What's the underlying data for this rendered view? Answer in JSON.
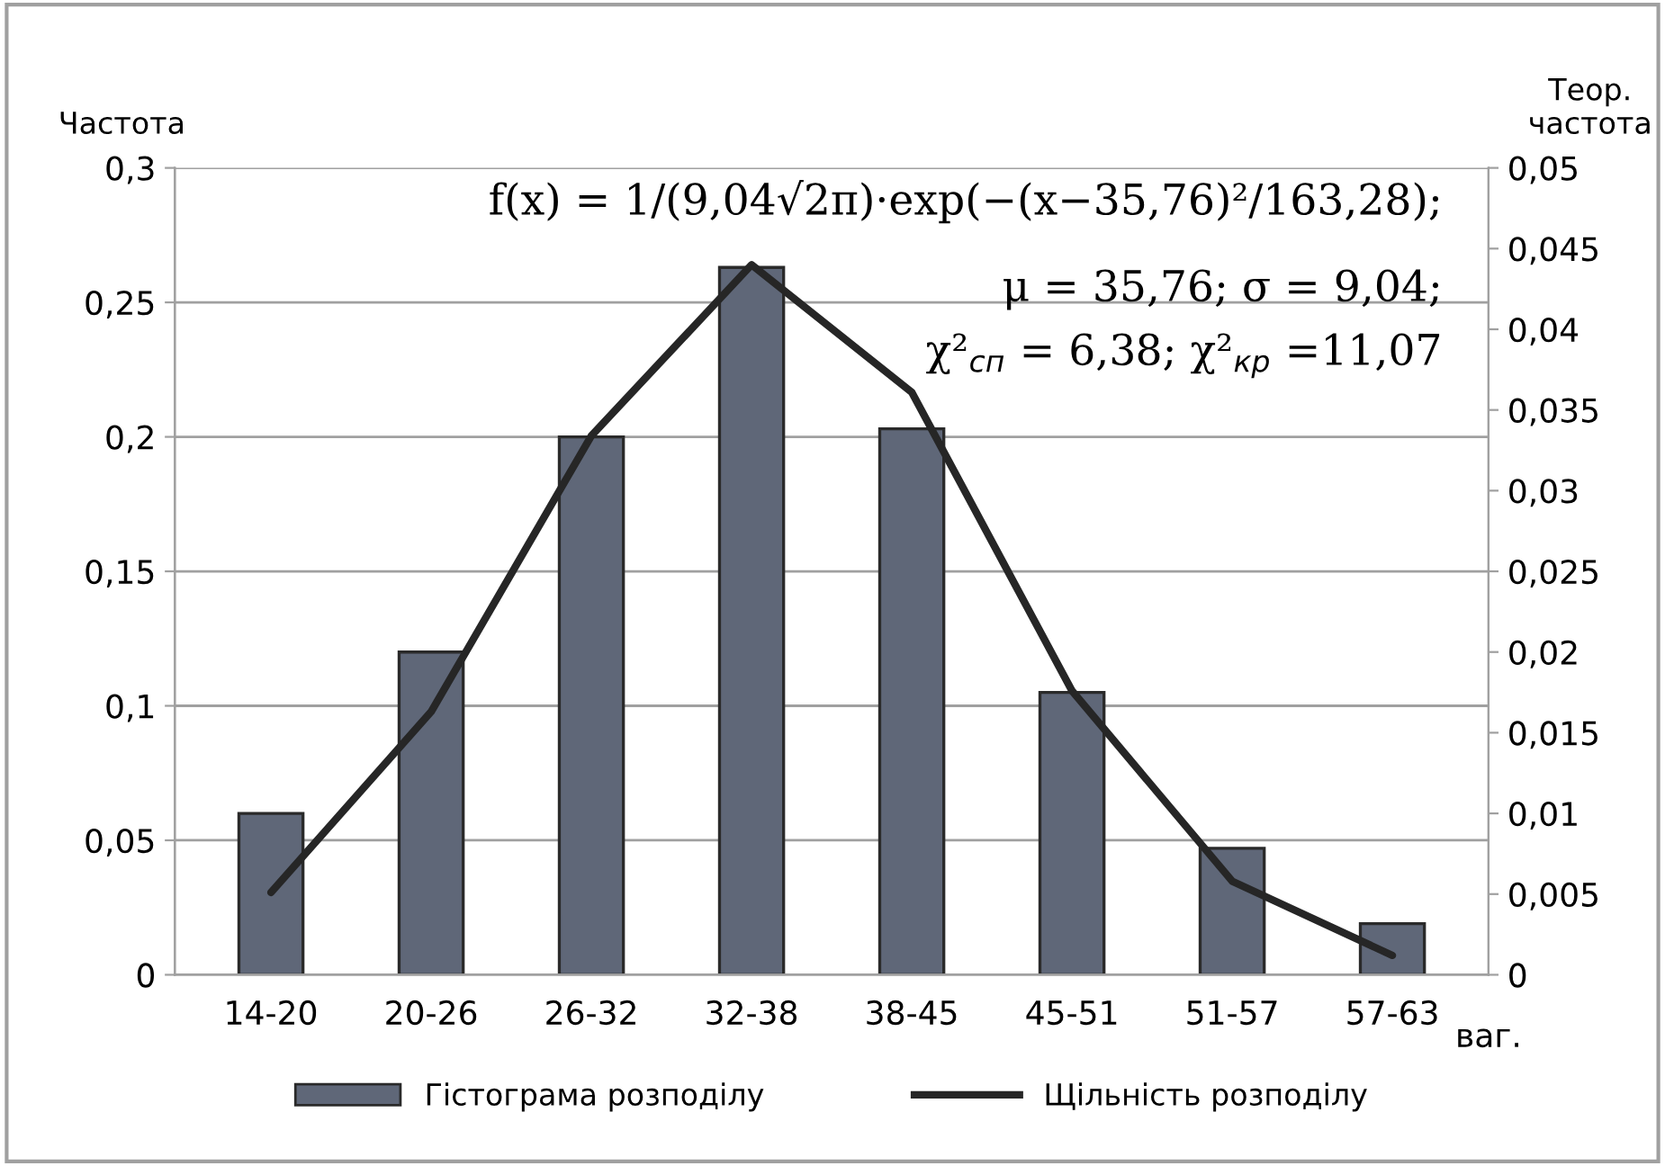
{
  "chart_data": {
    "type": "bar",
    "ylabel": "Частота",
    "y2label": "Теор.\nчастота",
    "xlabel": "ваг.",
    "categories": [
      "14-20",
      "20-26",
      "26-32",
      "32-38",
      "38-45",
      "45-51",
      "51-57",
      "57-63"
    ],
    "series": [
      {
        "name": "Гістограма розподілу",
        "color": "#5f6778",
        "values": [
          0.06,
          0.12,
          0.2,
          0.263,
          0.203,
          0.105,
          0.047,
          0.019
        ]
      },
      {
        "name": "Щільність розподілу",
        "type": "line",
        "axis": "y2",
        "color": "#262626",
        "values": [
          0.0051,
          0.0163,
          0.0334,
          0.044,
          0.0361,
          0.0176,
          0.0058,
          0.0012
        ]
      }
    ],
    "ylim": [
      0,
      0.3
    ],
    "yticks": [
      0,
      {
        "value": 0.05,
        "label": "0,05"
      },
      {
        "value": 0.1,
        "label": "0,1"
      },
      {
        "value": 0.15,
        "label": "0,15"
      },
      {
        "value": 0.2,
        "label": "0,2"
      },
      {
        "value": 0.25,
        "label": "0,25"
      },
      {
        "value": 0.3,
        "label": "0,3"
      }
    ],
    "y2lim": [
      0,
      0.05
    ],
    "y2ticks": [
      0,
      {
        "value": 0.005,
        "label": "0,005"
      },
      {
        "value": 0.01,
        "label": "0,01"
      },
      {
        "value": 0.015,
        "label": "0,015"
      },
      {
        "value": 0.02,
        "label": "0,02"
      },
      {
        "value": 0.025,
        "label": "0,025"
      },
      {
        "value": 0.03,
        "label": "0,03"
      },
      {
        "value": 0.035,
        "label": "0,035"
      },
      {
        "value": 0.04,
        "label": "0,04"
      },
      {
        "value": 0.045,
        "label": "0,045"
      },
      {
        "value": 0.05,
        "label": "0,05"
      }
    ],
    "grid": "y",
    "legend": "bottom",
    "marker": "none",
    "line_style": "solid",
    "annotations": [
      "f(x) = 1/(9,04√2π)·exp(−(x−35,76)²/163,28);",
      "μ = 35,76; σ = 9,04;",
      "χ²$_{сп}$ = 6,38; χ²$_{кр}$ =11,07"
    ]
  }
}
